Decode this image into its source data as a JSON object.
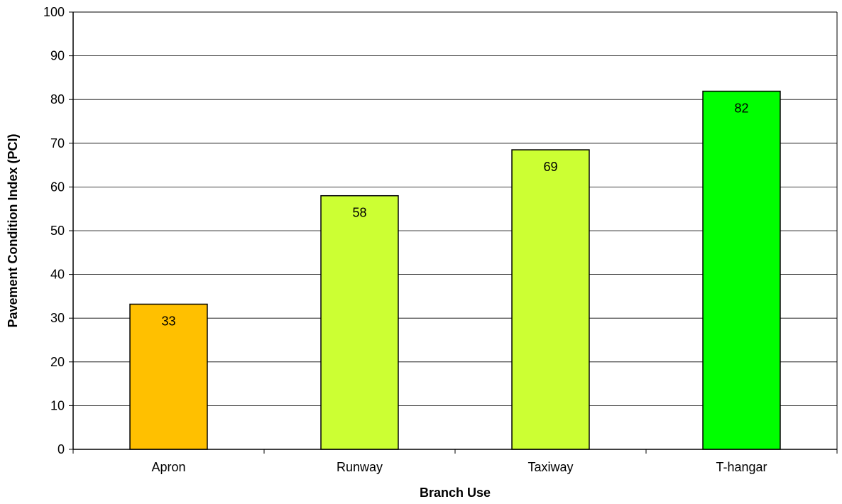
{
  "chart_data": {
    "type": "bar",
    "xlabel": "Branch Use",
    "ylabel": "Pavement Condition Index (PCI)",
    "ylim": [
      0,
      100
    ],
    "ytick_step": 10,
    "grid": true,
    "categories": [
      "Apron",
      "Runway",
      "Taxiway",
      "T-hangar"
    ],
    "values": [
      33.2,
      58,
      68.5,
      81.9
    ],
    "value_labels": [
      "33",
      "58",
      "69",
      "82"
    ],
    "colors": [
      "#FFC000",
      "#CCFF33",
      "#CCFF33",
      "#00FF00"
    ]
  }
}
